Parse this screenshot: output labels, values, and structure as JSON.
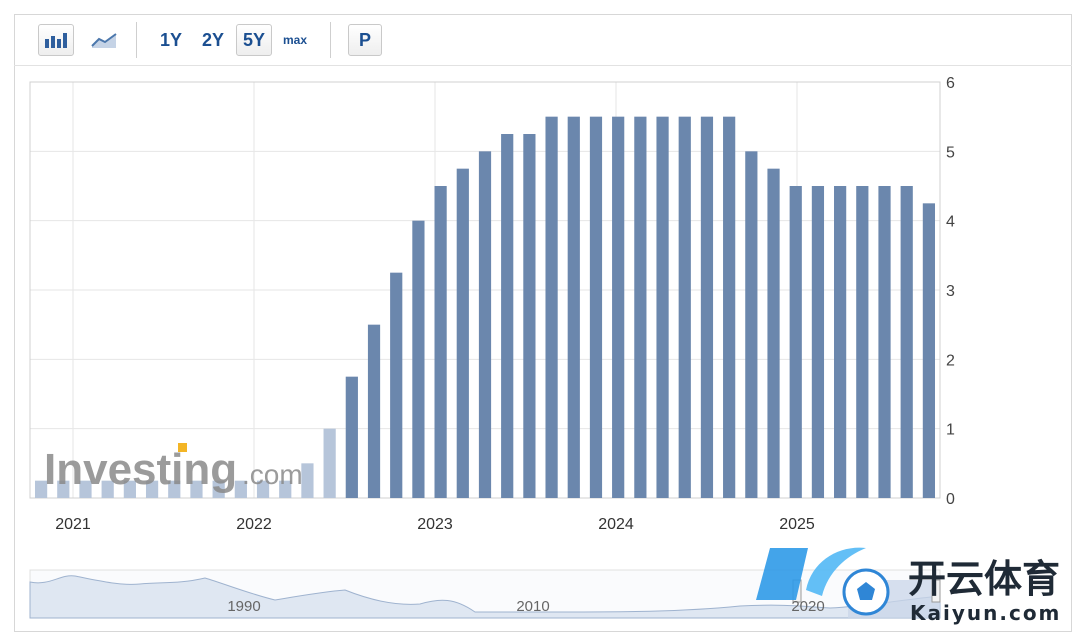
{
  "toolbar": {
    "ranges": [
      "1Y",
      "2Y",
      "5Y",
      "max"
    ],
    "active_range": "5Y",
    "p_label": "P",
    "icons": [
      "bar-chart-icon",
      "area-chart-icon"
    ]
  },
  "watermark": {
    "investing_text": "Investing",
    "dotcom_text": ".com",
    "brand_cn": "开云体育",
    "brand_url": "Kaiyun.com"
  },
  "navigator": {
    "labels": [
      "1990",
      "2010",
      "2020"
    ]
  },
  "colors": {
    "bar": "#6b87ad",
    "bar_faded": "#b6c5da",
    "grid": "#e6e6e6"
  },
  "chart_data": {
    "type": "bar",
    "ylim": [
      0,
      6
    ],
    "yticks": [
      0,
      1,
      2,
      3,
      4,
      5,
      6
    ],
    "xlabels": [
      "2021",
      "2022",
      "2023",
      "2024",
      "2025"
    ],
    "values": [
      0.25,
      0.25,
      0.25,
      0.25,
      0.25,
      0.25,
      0.25,
      0.25,
      0.25,
      0.25,
      0.25,
      0.25,
      0.5,
      1.0,
      1.75,
      2.5,
      3.25,
      4.0,
      4.5,
      4.75,
      5.0,
      5.25,
      5.25,
      5.5,
      5.5,
      5.5,
      5.5,
      5.5,
      5.5,
      5.5,
      5.5,
      5.5,
      5.0,
      4.75,
      4.5,
      4.5,
      4.5,
      4.5,
      4.5,
      4.5,
      4.25
    ],
    "faded_count": 14
  }
}
